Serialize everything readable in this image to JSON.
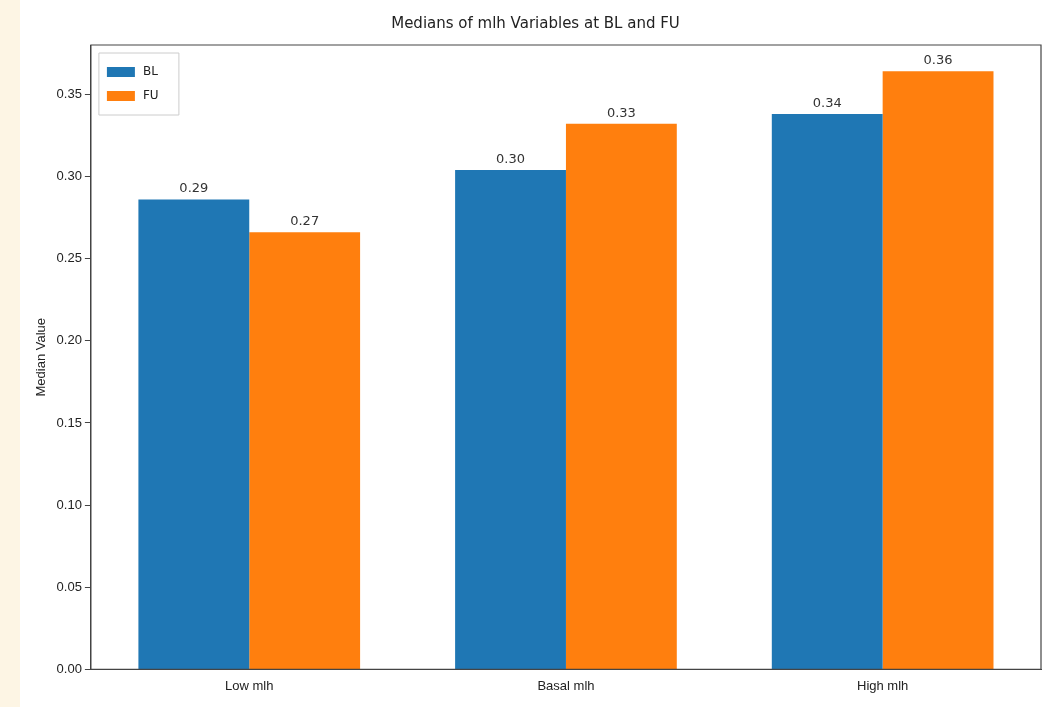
{
  "chart_data": {
    "type": "bar",
    "title": "Medians of mlh Variables at BL and FU",
    "ylabel": "Median Value",
    "categories": [
      "Low mlh",
      "Basal mlh",
      "High mlh"
    ],
    "series": [
      {
        "name": "BL",
        "color": "#1f77b4",
        "values": [
          0.286,
          0.304,
          0.338
        ],
        "value_labels": [
          "0.29",
          "0.30",
          "0.34"
        ]
      },
      {
        "name": "FU",
        "color": "#ff7f0e",
        "values": [
          0.266,
          0.332,
          0.364
        ],
        "value_labels": [
          "0.27",
          "0.33",
          "0.36"
        ]
      }
    ],
    "ylim": [
      0,
      0.38
    ],
    "yticks": [
      {
        "value": 0,
        "label": "0.00"
      },
      0.05,
      {
        "value": 0.1,
        "label": "0.10"
      },
      0.15,
      {
        "value": 0.2,
        "label": "0.20"
      },
      0.25,
      {
        "value": 0.3,
        "label": "0.30"
      },
      0.35
    ],
    "grid": false,
    "legend": "top left"
  }
}
